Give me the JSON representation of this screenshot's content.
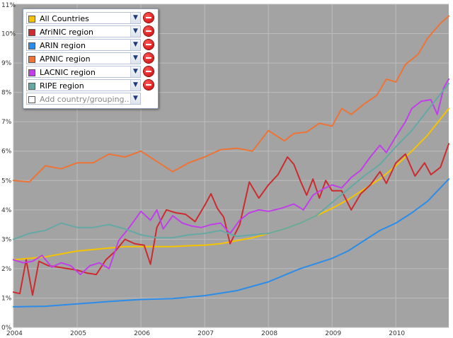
{
  "chart_data": {
    "type": "line",
    "title": "",
    "xlabel": "",
    "ylabel": "",
    "x_range": [
      2004.0,
      2010.83
    ],
    "ylim": [
      0,
      11
    ],
    "x_ticks": [
      {
        "value": 2004,
        "label": "2004"
      },
      {
        "value": 2005,
        "label": "2005"
      },
      {
        "value": 2006,
        "label": "2006"
      },
      {
        "value": 2007,
        "label": "2007"
      },
      {
        "value": 2008,
        "label": "2008"
      },
      {
        "value": 2009,
        "label": "2009"
      },
      {
        "value": 2010,
        "label": "2010"
      }
    ],
    "y_ticks": [
      {
        "value": 0,
        "label": "0%"
      },
      {
        "value": 1,
        "label": "1%"
      },
      {
        "value": 2,
        "label": "2%"
      },
      {
        "value": 3,
        "label": "3%"
      },
      {
        "value": 4,
        "label": "4%"
      },
      {
        "value": 5,
        "label": "5%"
      },
      {
        "value": 6,
        "label": "6%"
      },
      {
        "value": 7,
        "label": "7%"
      },
      {
        "value": 8,
        "label": "8%"
      },
      {
        "value": 9,
        "label": "9%"
      },
      {
        "value": 10,
        "label": "10%"
      },
      {
        "value": 11,
        "label": "11%"
      }
    ],
    "grid": true,
    "legend_position": "top-left",
    "plot_background": "#a3a3a3",
    "series": [
      {
        "name": "All Countries",
        "color": "#f5c300",
        "points": [
          [
            2004.0,
            2.3
          ],
          [
            2004.25,
            2.35
          ],
          [
            2004.5,
            2.4
          ],
          [
            2004.75,
            2.5
          ],
          [
            2005.0,
            2.6
          ],
          [
            2005.25,
            2.65
          ],
          [
            2005.5,
            2.7
          ],
          [
            2005.75,
            2.75
          ],
          [
            2006.0,
            2.75
          ],
          [
            2006.25,
            2.75
          ],
          [
            2006.5,
            2.75
          ],
          [
            2006.75,
            2.78
          ],
          [
            2007.0,
            2.8
          ],
          [
            2007.25,
            2.85
          ],
          [
            2007.5,
            2.95
          ],
          [
            2007.75,
            3.05
          ],
          [
            2008.0,
            3.2
          ],
          [
            2008.25,
            3.35
          ],
          [
            2008.5,
            3.55
          ],
          [
            2008.75,
            3.8
          ],
          [
            2009.0,
            4.05
          ],
          [
            2009.25,
            4.35
          ],
          [
            2009.5,
            4.7
          ],
          [
            2009.75,
            5.05
          ],
          [
            2010.0,
            5.5
          ],
          [
            2010.25,
            6.0
          ],
          [
            2010.5,
            6.55
          ],
          [
            2010.83,
            7.45
          ]
        ]
      },
      {
        "name": "AfriNIC region",
        "color": "#cc2b30",
        "points": [
          [
            2004.0,
            1.2
          ],
          [
            2004.1,
            1.15
          ],
          [
            2004.2,
            2.3
          ],
          [
            2004.3,
            1.1
          ],
          [
            2004.4,
            2.25
          ],
          [
            2004.55,
            2.1
          ],
          [
            2004.7,
            2.05
          ],
          [
            2004.85,
            2.0
          ],
          [
            2005.0,
            1.95
          ],
          [
            2005.15,
            1.85
          ],
          [
            2005.3,
            1.8
          ],
          [
            2005.45,
            2.3
          ],
          [
            2005.6,
            2.6
          ],
          [
            2005.75,
            3.0
          ],
          [
            2005.9,
            2.85
          ],
          [
            2006.05,
            2.8
          ],
          [
            2006.15,
            2.15
          ],
          [
            2006.25,
            3.4
          ],
          [
            2006.4,
            4.0
          ],
          [
            2006.55,
            3.9
          ],
          [
            2006.7,
            3.85
          ],
          [
            2006.85,
            3.6
          ],
          [
            2007.0,
            4.15
          ],
          [
            2007.1,
            4.55
          ],
          [
            2007.2,
            4.05
          ],
          [
            2007.3,
            3.75
          ],
          [
            2007.4,
            2.85
          ],
          [
            2007.55,
            3.5
          ],
          [
            2007.7,
            4.95
          ],
          [
            2007.85,
            4.4
          ],
          [
            2008.0,
            4.85
          ],
          [
            2008.15,
            5.2
          ],
          [
            2008.3,
            5.8
          ],
          [
            2008.4,
            5.55
          ],
          [
            2008.5,
            5.0
          ],
          [
            2008.6,
            4.5
          ],
          [
            2008.7,
            5.05
          ],
          [
            2008.8,
            4.4
          ],
          [
            2008.9,
            5.0
          ],
          [
            2009.0,
            4.65
          ],
          [
            2009.15,
            4.65
          ],
          [
            2009.3,
            4.0
          ],
          [
            2009.45,
            4.55
          ],
          [
            2009.6,
            4.85
          ],
          [
            2009.75,
            5.3
          ],
          [
            2009.85,
            4.9
          ],
          [
            2010.0,
            5.6
          ],
          [
            2010.15,
            5.9
          ],
          [
            2010.3,
            5.15
          ],
          [
            2010.45,
            5.6
          ],
          [
            2010.55,
            5.2
          ],
          [
            2010.7,
            5.45
          ],
          [
            2010.83,
            6.25
          ]
        ]
      },
      {
        "name": "ARIN region",
        "color": "#2c8ce8",
        "points": [
          [
            2004.0,
            0.7
          ],
          [
            2004.5,
            0.72
          ],
          [
            2005.0,
            0.8
          ],
          [
            2005.5,
            0.88
          ],
          [
            2006.0,
            0.95
          ],
          [
            2006.5,
            0.98
          ],
          [
            2007.0,
            1.08
          ],
          [
            2007.5,
            1.25
          ],
          [
            2008.0,
            1.55
          ],
          [
            2008.5,
            2.0
          ],
          [
            2009.0,
            2.35
          ],
          [
            2009.25,
            2.6
          ],
          [
            2009.5,
            2.95
          ],
          [
            2009.75,
            3.3
          ],
          [
            2010.0,
            3.55
          ],
          [
            2010.25,
            3.9
          ],
          [
            2010.5,
            4.3
          ],
          [
            2010.83,
            5.05
          ]
        ]
      },
      {
        "name": "APNIC region",
        "color": "#ec7436",
        "points": [
          [
            2004.0,
            5.0
          ],
          [
            2004.25,
            4.95
          ],
          [
            2004.5,
            5.5
          ],
          [
            2004.75,
            5.4
          ],
          [
            2005.0,
            5.6
          ],
          [
            2005.25,
            5.6
          ],
          [
            2005.5,
            5.9
          ],
          [
            2005.75,
            5.8
          ],
          [
            2006.0,
            6.0
          ],
          [
            2006.25,
            5.65
          ],
          [
            2006.5,
            5.3
          ],
          [
            2006.75,
            5.6
          ],
          [
            2007.0,
            5.8
          ],
          [
            2007.25,
            6.05
          ],
          [
            2007.5,
            6.1
          ],
          [
            2007.75,
            6.0
          ],
          [
            2008.0,
            6.7
          ],
          [
            2008.25,
            6.35
          ],
          [
            2008.4,
            6.6
          ],
          [
            2008.6,
            6.65
          ],
          [
            2008.8,
            6.95
          ],
          [
            2009.0,
            6.85
          ],
          [
            2009.15,
            7.45
          ],
          [
            2009.3,
            7.25
          ],
          [
            2009.5,
            7.6
          ],
          [
            2009.7,
            7.9
          ],
          [
            2009.85,
            8.45
          ],
          [
            2010.0,
            8.35
          ],
          [
            2010.15,
            8.95
          ],
          [
            2010.35,
            9.3
          ],
          [
            2010.5,
            9.85
          ],
          [
            2010.7,
            10.35
          ],
          [
            2010.83,
            10.6
          ]
        ]
      },
      {
        "name": "LACNIC region",
        "color": "#c040e8",
        "points": [
          [
            2004.0,
            2.3
          ],
          [
            2004.15,
            2.2
          ],
          [
            2004.3,
            2.25
          ],
          [
            2004.45,
            2.45
          ],
          [
            2004.6,
            2.05
          ],
          [
            2004.75,
            2.2
          ],
          [
            2004.9,
            2.1
          ],
          [
            2005.05,
            1.8
          ],
          [
            2005.2,
            2.1
          ],
          [
            2005.35,
            2.2
          ],
          [
            2005.5,
            2.0
          ],
          [
            2005.65,
            2.95
          ],
          [
            2005.8,
            3.35
          ],
          [
            2006.0,
            3.95
          ],
          [
            2006.15,
            3.65
          ],
          [
            2006.25,
            4.0
          ],
          [
            2006.35,
            3.35
          ],
          [
            2006.5,
            3.8
          ],
          [
            2006.65,
            3.55
          ],
          [
            2006.8,
            3.45
          ],
          [
            2006.95,
            3.4
          ],
          [
            2007.1,
            3.5
          ],
          [
            2007.25,
            3.55
          ],
          [
            2007.4,
            3.2
          ],
          [
            2007.55,
            3.65
          ],
          [
            2007.7,
            3.9
          ],
          [
            2007.85,
            4.0
          ],
          [
            2008.0,
            3.95
          ],
          [
            2008.2,
            4.05
          ],
          [
            2008.4,
            4.2
          ],
          [
            2008.55,
            4.0
          ],
          [
            2008.7,
            4.5
          ],
          [
            2008.85,
            4.7
          ],
          [
            2009.0,
            4.85
          ],
          [
            2009.15,
            4.75
          ],
          [
            2009.3,
            5.1
          ],
          [
            2009.45,
            5.35
          ],
          [
            2009.6,
            5.8
          ],
          [
            2009.75,
            6.2
          ],
          [
            2009.85,
            5.95
          ],
          [
            2010.0,
            6.5
          ],
          [
            2010.15,
            7.0
          ],
          [
            2010.25,
            7.45
          ],
          [
            2010.4,
            7.7
          ],
          [
            2010.55,
            7.75
          ],
          [
            2010.65,
            7.25
          ],
          [
            2010.75,
            8.15
          ],
          [
            2010.83,
            8.45
          ]
        ]
      },
      {
        "name": "RIPE region",
        "color": "#66a8a4",
        "points": [
          [
            2004.0,
            3.0
          ],
          [
            2004.25,
            3.2
          ],
          [
            2004.5,
            3.3
          ],
          [
            2004.75,
            3.55
          ],
          [
            2005.0,
            3.4
          ],
          [
            2005.25,
            3.4
          ],
          [
            2005.5,
            3.5
          ],
          [
            2005.75,
            3.35
          ],
          [
            2006.0,
            3.15
          ],
          [
            2006.25,
            3.05
          ],
          [
            2006.5,
            3.05
          ],
          [
            2006.75,
            3.15
          ],
          [
            2007.0,
            3.2
          ],
          [
            2007.25,
            3.3
          ],
          [
            2007.5,
            3.1
          ],
          [
            2007.75,
            3.15
          ],
          [
            2008.0,
            3.2
          ],
          [
            2008.25,
            3.35
          ],
          [
            2008.5,
            3.55
          ],
          [
            2008.75,
            3.8
          ],
          [
            2009.0,
            4.25
          ],
          [
            2009.25,
            4.7
          ],
          [
            2009.5,
            5.15
          ],
          [
            2009.75,
            5.55
          ],
          [
            2010.0,
            6.15
          ],
          [
            2010.25,
            6.7
          ],
          [
            2010.5,
            7.4
          ],
          [
            2010.83,
            8.3
          ]
        ]
      }
    ]
  },
  "legend": {
    "items": [
      {
        "label": "All Countries",
        "color": "#f5c300"
      },
      {
        "label": "AfriNIC region",
        "color": "#cc2b30"
      },
      {
        "label": "ARIN region",
        "color": "#2c8ce8"
      },
      {
        "label": "APNIC region",
        "color": "#ec7436"
      },
      {
        "label": "LACNIC region",
        "color": "#c040e8"
      },
      {
        "label": "RIPE region",
        "color": "#66a8a4"
      }
    ],
    "add_placeholder": "Add country/grouping.."
  },
  "icons": {
    "dropdown": "chevron-down-icon",
    "remove": "remove-series-icon"
  }
}
